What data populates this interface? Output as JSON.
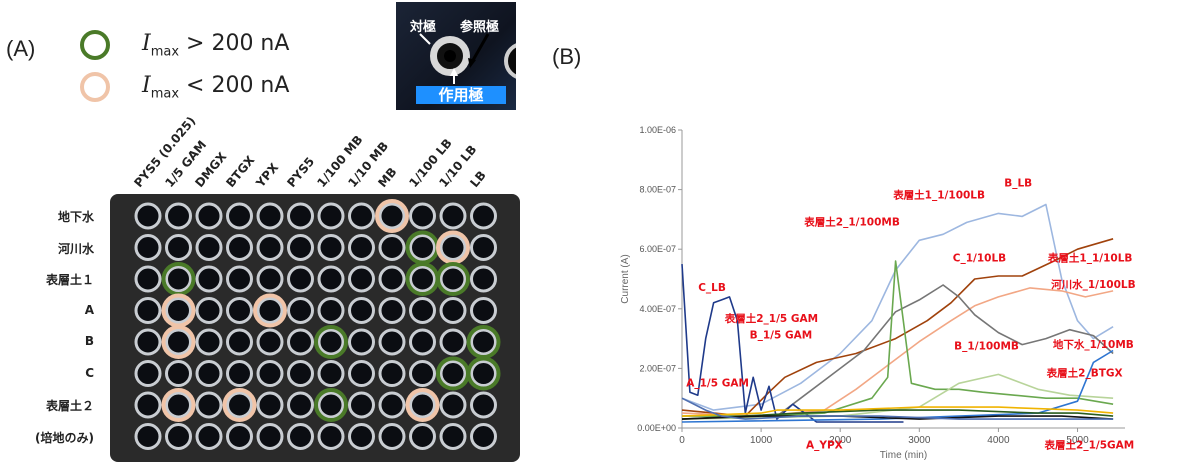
{
  "panel_a": {
    "label": "(A)",
    "legend": [
      {
        "italic": "I",
        "sub": "max",
        "rest": " > 200 nA",
        "color": "#4a7a28"
      },
      {
        "italic": "I",
        "sub": "max",
        "rest": " < 200 nA",
        "color": "#f0c4a8"
      }
    ],
    "electrode_photo": {
      "counter": "対極",
      "reference": "参照極",
      "working": "作用極"
    },
    "columns": [
      "PYS5 (0.025)",
      "1/5 GAM",
      "DMGX",
      "BTGX",
      "YPX",
      "PYS5",
      "1/100 MB",
      "1/10 MB",
      "MB",
      "1/100 LB",
      "1/10 LB",
      "LB"
    ],
    "rows": [
      {
        "label": "地下水"
      },
      {
        "label": "河川水"
      },
      {
        "label": "表層土１"
      },
      {
        "label": "A"
      },
      {
        "label": "B"
      },
      {
        "label": "C"
      },
      {
        "label": "表層土２"
      },
      {
        "label": "(培地のみ)"
      }
    ],
    "well_markers": [
      {
        "row": 0,
        "col": 8,
        "level": "low"
      },
      {
        "row": 1,
        "col": 9,
        "level": "high"
      },
      {
        "row": 1,
        "col": 10,
        "level": "low"
      },
      {
        "row": 2,
        "col": 1,
        "level": "high"
      },
      {
        "row": 2,
        "col": 9,
        "level": "high"
      },
      {
        "row": 2,
        "col": 10,
        "level": "high"
      },
      {
        "row": 3,
        "col": 1,
        "level": "low"
      },
      {
        "row": 3,
        "col": 4,
        "level": "low"
      },
      {
        "row": 4,
        "col": 1,
        "level": "low"
      },
      {
        "row": 4,
        "col": 6,
        "level": "high"
      },
      {
        "row": 4,
        "col": 11,
        "level": "high"
      },
      {
        "row": 5,
        "col": 10,
        "level": "high"
      },
      {
        "row": 5,
        "col": 11,
        "level": "high"
      },
      {
        "row": 6,
        "col": 1,
        "level": "low"
      },
      {
        "row": 6,
        "col": 3,
        "level": "low"
      },
      {
        "row": 6,
        "col": 6,
        "level": "high"
      },
      {
        "row": 6,
        "col": 9,
        "level": "low"
      }
    ],
    "colors": {
      "high": "#4a7a28",
      "low": "#f0c4a8"
    }
  },
  "panel_b": {
    "label": "(B)"
  },
  "chart_data": {
    "type": "line",
    "xlabel": "Time (min)",
    "ylabel": "Current (A)",
    "xlim": [
      0,
      5600
    ],
    "ylim": [
      0,
      1e-06
    ],
    "xticks": [
      "0",
      "1000",
      "2000",
      "3000",
      "4000",
      "5000"
    ],
    "yticks": [
      "0.00E+00",
      "2.00E-07",
      "4.00E-07",
      "6.00E-07",
      "8.00E-07",
      "1.00E-06"
    ],
    "grid": false,
    "annotation_color": "#e8101a",
    "series": [
      {
        "name": "B_LB",
        "color": "#9db7e0",
        "x": [
          0,
          400,
          1000,
          1500,
          2000,
          2400,
          2700,
          3000,
          3300,
          3600,
          4000,
          4300,
          4600,
          4800,
          5000,
          5200,
          5450
        ],
        "y": [
          1e-07,
          6e-08,
          8e-08,
          1.5e-07,
          2.5e-07,
          3.6e-07,
          5.3e-07,
          6.3e-07,
          6.5e-07,
          6.9e-07,
          7.2e-07,
          7.1e-07,
          7.5e-07,
          5e-07,
          3.6e-07,
          3e-07,
          3.4e-07
        ]
      },
      {
        "name": "C_1/10LB",
        "color": "#a0420c",
        "x": [
          0,
          800,
          1100,
          1300,
          1700,
          2200,
          2700,
          3100,
          3400,
          3700,
          4000,
          4300,
          4700,
          5000,
          5450
        ],
        "y": [
          6e-08,
          4e-08,
          1.2e-07,
          1.7e-07,
          2.2e-07,
          2.5e-07,
          3e-07,
          3.6e-07,
          4.2e-07,
          5e-07,
          5.1e-07,
          5.1e-07,
          5.6e-07,
          6e-07,
          6.35e-07
        ]
      },
      {
        "name": "表層土1_1/10LB",
        "color": "#f2a785",
        "x": [
          0,
          1000,
          1800,
          2200,
          2600,
          3000,
          3400,
          3700,
          4000,
          4400,
          4800,
          5100,
          5450
        ],
        "y": [
          5e-08,
          4e-08,
          6e-08,
          1.3e-07,
          2.1e-07,
          2.9e-07,
          3.6e-07,
          4.1e-07,
          4.4e-07,
          4.7e-07,
          4.6e-07,
          4.4e-07,
          4.6e-07
        ]
      },
      {
        "name": "表層土1_1/100LB",
        "color": "#767676",
        "x": [
          0,
          1200,
          1500,
          1900,
          2300,
          2700,
          3000,
          3300,
          3500,
          3700,
          4000,
          4300,
          4600,
          4900,
          5200,
          5450
        ],
        "y": [
          3e-08,
          4e-08,
          1e-07,
          1.8e-07,
          2.6e-07,
          3.9e-07,
          4.3e-07,
          4.8e-07,
          4.4e-07,
          3.8e-07,
          3.2e-07,
          2.8e-07,
          3e-07,
          3.3e-07,
          3.1e-07,
          2.5e-07
        ]
      },
      {
        "name": "C_LB",
        "color": "#1f3a8a",
        "x": [
          0,
          100,
          200,
          300,
          400,
          500,
          600,
          700,
          800,
          900,
          1000,
          1100,
          1200,
          1400,
          1700,
          2200,
          2800
        ],
        "y": [
          5.5e-07,
          1.2e-07,
          1.1e-07,
          3e-07,
          4.2e-07,
          4.3e-07,
          4.4e-07,
          3.6e-07,
          5e-08,
          1.7e-07,
          6e-08,
          1.4e-07,
          3e-08,
          8e-08,
          2e-08,
          2e-08,
          2e-08
        ]
      },
      {
        "name": "B_1/100MB",
        "color": "#6aa84f",
        "x": [
          0,
          1000,
          1800,
          2400,
          2600,
          2700,
          2900,
          3200,
          3500,
          3800,
          4200,
          4600,
          5000,
          5450
        ],
        "y": [
          4e-08,
          4e-08,
          5e-08,
          1e-07,
          1.7e-07,
          5.6e-07,
          1.5e-07,
          1.3e-07,
          1.3e-07,
          1.2e-07,
          1.1e-07,
          1e-07,
          1e-07,
          8e-08
        ]
      },
      {
        "name": "表層土2_BTGX",
        "color": "#b8d49a",
        "x": [
          0,
          2000,
          3000,
          3500,
          4000,
          4500,
          4900,
          5450
        ],
        "y": [
          3e-08,
          4e-08,
          7e-08,
          1.5e-07,
          1.8e-07,
          1.3e-07,
          1.1e-07,
          1e-07
        ]
      },
      {
        "name": "地下水_1/10MB",
        "color": "#2e75d1",
        "x": [
          0,
          2500,
          3500,
          4500,
          5000,
          5200,
          5450
        ],
        "y": [
          2e-08,
          3e-08,
          4e-08,
          5e-08,
          9e-08,
          2.2e-07,
          2.6e-07
        ]
      },
      {
        "name": "河川水_1/100LB",
        "color": "#2a5d1f",
        "x": [
          0,
          1500,
          2500,
          3500,
          4500,
          5000,
          5450
        ],
        "y": [
          3e-08,
          5e-08,
          6e-08,
          6e-08,
          5e-08,
          5e-08,
          4e-08
        ]
      },
      {
        "name": "表層土2_1/5GAM",
        "color": "#111111",
        "x": [
          0,
          1000,
          2000,
          3000,
          4000,
          4800,
          5450
        ],
        "y": [
          3e-08,
          4e-08,
          4e-08,
          3e-08,
          4e-08,
          4e-08,
          3e-08
        ]
      },
      {
        "name": "A_YPX",
        "color": "#f0b400",
        "x": [
          0,
          1000,
          1200,
          2000,
          3000,
          4000,
          5000,
          5450
        ],
        "y": [
          4e-08,
          5e-08,
          6e-08,
          6e-08,
          7e-08,
          7e-08,
          6e-08,
          5e-08
        ]
      },
      {
        "name": "A_1/5 GAM",
        "color": "#4f6fb0",
        "x": [
          0,
          300,
          500,
          800,
          1500,
          2500,
          3500,
          4500,
          5450
        ],
        "y": [
          1e-07,
          6e-08,
          4e-08,
          3e-08,
          4e-08,
          4e-08,
          3e-08,
          3e-08,
          3e-08
        ]
      }
    ],
    "annotations": [
      {
        "text": "B_LB",
        "x": 4250,
        "y": 8.1e-07
      },
      {
        "text": "表層土1_1/100LB",
        "x": 3250,
        "y": 7.7e-07
      },
      {
        "text": "表層土2_1/100MB",
        "x": 2150,
        "y": 6.8e-07
      },
      {
        "text": "C_1/10LB",
        "x": 3760,
        "y": 5.58e-07
      },
      {
        "text": "表層土1_1/10LB",
        "x": 5160,
        "y": 5.58e-07
      },
      {
        "text": "河川水_1/100LB",
        "x": 5200,
        "y": 4.7e-07
      },
      {
        "text": "C_LB",
        "x": 380,
        "y": 4.6e-07
      },
      {
        "text": "表層土2_1/5 GAM",
        "x": 1130,
        "y": 3.55e-07
      },
      {
        "text": "B_1/5 GAM",
        "x": 1250,
        "y": 3e-07
      },
      {
        "text": "B_1/100MB",
        "x": 3850,
        "y": 2.63e-07
      },
      {
        "text": "地下水_1/10MB",
        "x": 5200,
        "y": 2.68e-07
      },
      {
        "text": "表層土2_BTGX",
        "x": 5090,
        "y": 1.72e-07
      },
      {
        "text": "A_1/5 GAM",
        "x": 450,
        "y": 1.4e-07
      },
      {
        "text": "A_YPX",
        "x": 1800,
        "y": -6.8e-08
      },
      {
        "text": "表層土2_1/5GAM",
        "x": 5150,
        "y": -6.8e-08
      }
    ]
  }
}
